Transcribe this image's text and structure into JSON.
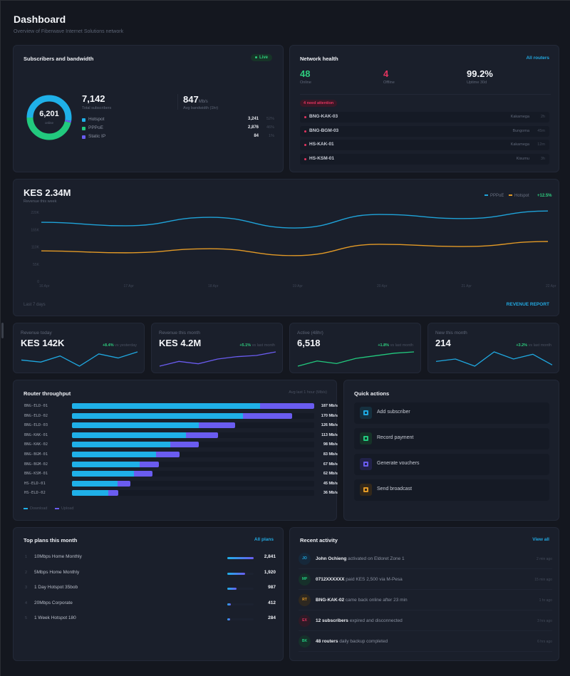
{
  "header": {
    "title": "Dashboard",
    "subtitle": "Overview of Fiberwave Internet Solutions network"
  },
  "subscribers": {
    "title": "Subscribers and bandwidth",
    "live_label": "Live",
    "online_value": "6,201",
    "online_label": "online",
    "total_value": "7,142",
    "total_label": "Total subscribers",
    "bandwidth_value": "847",
    "bandwidth_unit": "Mb/s",
    "bandwidth_label": "Avg bandwidth (1hr)",
    "breakdown": [
      {
        "name": "Hotspot",
        "value": "3,241",
        "pct": "52%",
        "share": 0.52,
        "color": "#1fb0e8"
      },
      {
        "name": "PPPoE",
        "value": "2,876",
        "pct": "46%",
        "share": 0.46,
        "color": "#22c97e"
      },
      {
        "name": "Static IP",
        "value": "84",
        "pct": "1%",
        "share": 0.014,
        "color": "#6a5cf0"
      }
    ]
  },
  "network": {
    "title": "Network health",
    "link": "All routers",
    "online": "48",
    "online_label": "Online",
    "offline": "4",
    "offline_label": "Offline",
    "uptime": "99.2%",
    "uptime_label": "Uptime 30d",
    "attention_label": "4 need attention",
    "routers": [
      {
        "name": "BNG-KAK-03",
        "location": "Kakamega",
        "time": "2h"
      },
      {
        "name": "BNG-BGM-03",
        "location": "Bungoma",
        "time": "45m"
      },
      {
        "name": "HS-KAK-01",
        "location": "Kakamega",
        "time": "12m"
      },
      {
        "name": "HS-KSM-01",
        "location": "Kisumu",
        "time": "3h"
      }
    ]
  },
  "revenue": {
    "value": "KES 2.34M",
    "label": "Revenue this week",
    "change": "+12.5%",
    "footer": "Last 7 days",
    "report_link": "REVENUE REPORT"
  },
  "chart_data": {
    "type": "line",
    "title": "Revenue this week",
    "x": [
      "16 Apr",
      "17 Apr",
      "18 Apr",
      "19 Apr",
      "20 Apr",
      "21 Apr",
      "22 Apr"
    ],
    "yticks": [
      "0",
      "55K",
      "110K",
      "165K",
      "220K"
    ],
    "ylim": [
      0,
      220000
    ],
    "legend_position": "top-right",
    "series": [
      {
        "name": "PPPoE",
        "color": "#1fa3d9",
        "values": [
          188000,
          177000,
          204000,
          170000,
          213000,
          200000,
          224000
        ]
      },
      {
        "name": "Hotspot",
        "color": "#e39a26",
        "values": [
          97000,
          91000,
          104000,
          82000,
          118000,
          111000,
          127000
        ]
      }
    ]
  },
  "kpis": [
    {
      "title": "Revenue today",
      "value": "KES 142K",
      "delta": "+8.4%",
      "delta_label": "vs yesterday",
      "color": "#1fa8e0",
      "spark": [
        4,
        3,
        6,
        1,
        7,
        5,
        8
      ]
    },
    {
      "title": "Revenue this month",
      "value": "KES 4.2M",
      "delta": "+5.1%",
      "delta_label": "vs last month",
      "color": "#6a5cf0",
      "spark": [
        1,
        3,
        2,
        4,
        5,
        5.5,
        7
      ]
    },
    {
      "title": "Active (48hr)",
      "value": "6,518",
      "delta": "+1.8%",
      "delta_label": "vs last month",
      "color": "#22c97e",
      "spark": [
        1,
        3,
        2,
        4,
        5,
        6,
        6.5
      ]
    },
    {
      "title": "New this month",
      "value": "214",
      "delta": "+3.2%",
      "delta_label": "vs last month",
      "color": "#1fa8e0",
      "spark": [
        3,
        4,
        1,
        7,
        4,
        6,
        1.5
      ]
    }
  ],
  "throughput": {
    "title": "Router throughput",
    "subtitle": "Avg last 1 hour (Mb/s)",
    "max": 187,
    "legend": {
      "download": "Download",
      "upload": "Upload"
    },
    "routers": [
      {
        "name": "BNG-ELD-01",
        "download": 145,
        "upload": 42,
        "label": "187 Mb/s"
      },
      {
        "name": "BNG-ELD-02",
        "download": 132,
        "upload": 38,
        "label": "170 Mb/s"
      },
      {
        "name": "BNG-ELD-03",
        "download": 98,
        "upload": 28,
        "label": "126 Mb/s"
      },
      {
        "name": "BNG-KAK-01",
        "download": 88,
        "upload": 25,
        "label": "113 Mb/s"
      },
      {
        "name": "BNG-KAK-02",
        "download": 76,
        "upload": 22,
        "label": "98 Mb/s"
      },
      {
        "name": "BNG-BGM-01",
        "download": 65,
        "upload": 18,
        "label": "83 Mb/s"
      },
      {
        "name": "BNG-BGM-02",
        "download": 52,
        "upload": 15,
        "label": "67 Mb/s"
      },
      {
        "name": "BNG-KSM-01",
        "download": 48,
        "upload": 14,
        "label": "62 Mb/s"
      },
      {
        "name": "HS-ELD-01",
        "download": 35,
        "upload": 10,
        "label": "45 Mb/s"
      },
      {
        "name": "HS-ELD-02",
        "download": 28,
        "upload": 8,
        "label": "36 Mb/s"
      }
    ]
  },
  "quick_actions": {
    "title": "Quick actions",
    "items": [
      {
        "label": "Add subscriber",
        "icon": "add-subscriber-icon",
        "color": "#1fa8e0",
        "bg": "#15303f"
      },
      {
        "label": "Record payment",
        "icon": "record-payment-icon",
        "color": "#22c97e",
        "bg": "#163328"
      },
      {
        "label": "Generate vouchers",
        "icon": "generate-vouchers-icon",
        "color": "#6a5cf0",
        "bg": "#22224a"
      },
      {
        "label": "Send broadcast",
        "icon": "send-broadcast-icon",
        "color": "#e39a26",
        "bg": "#33281a"
      }
    ]
  },
  "plans": {
    "title": "Top plans this month",
    "link": "All plans",
    "items": [
      {
        "rank": "1",
        "name": "10Mbps Home Monthly",
        "value": "2,841",
        "share": 1.0
      },
      {
        "rank": "2",
        "name": "5Mbps Home Monthly",
        "value": "1,920",
        "share": 0.676
      },
      {
        "rank": "3",
        "name": "1 Day Hotspot 35bob",
        "value": "987",
        "share": 0.347
      },
      {
        "rank": "4",
        "name": "20Mbps Corporate",
        "value": "412",
        "share": 0.145
      },
      {
        "rank": "5",
        "name": "1 Week Hotspot 180",
        "value": "284",
        "share": 0.1
      }
    ]
  },
  "activity": {
    "title": "Recent activity",
    "link": "View all",
    "items": [
      {
        "initials": "JO",
        "bold": "John Ochieng",
        "text": " activated on Eldoret Zone 1",
        "time": "2 min ago",
        "color": "#1fa8e0",
        "bg": "#16283a"
      },
      {
        "initials": "MP",
        "bold": "0712XXXXXX",
        "text": " paid KES 2,500 via M-Pesa",
        "time": "15 min ago",
        "color": "#22c97e",
        "bg": "#16302a"
      },
      {
        "initials": "RT",
        "bold": "BNG-KAK-02",
        "text": " came back online after 23 min",
        "time": "1 hr ago",
        "color": "#e39a26",
        "bg": "#2e2820"
      },
      {
        "initials": "EX",
        "bold": "12 subscribers",
        "text": " expired and disconnected",
        "time": "3 hrs ago",
        "color": "#e2345f",
        "bg": "#2e1a26"
      },
      {
        "initials": "BK",
        "bold": "48 routers",
        "text": " daily backup completed",
        "time": "6 hrs ago",
        "color": "#22c97e",
        "bg": "#16302a"
      }
    ]
  }
}
